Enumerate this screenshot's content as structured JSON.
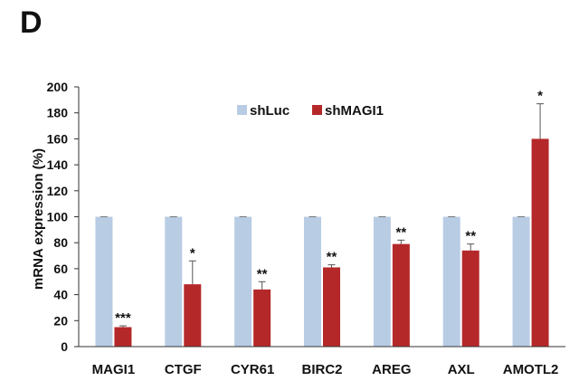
{
  "panel_label": "D",
  "chart_data": {
    "type": "bar",
    "categories": [
      "MAGI1",
      "CTGF",
      "CYR61",
      "BIRC2",
      "AREG",
      "AXL",
      "AMOTL2"
    ],
    "series": [
      {
        "name": "shLuc",
        "values": [
          100,
          100,
          100,
          100,
          100,
          100,
          100
        ],
        "error": [
          0,
          0,
          0,
          0,
          0,
          0,
          0
        ],
        "color": "#b8cce4"
      },
      {
        "name": "shMAGI1",
        "values": [
          15,
          48,
          44,
          61,
          79,
          74,
          160
        ],
        "error": [
          1,
          18,
          6,
          2,
          3,
          5,
          27
        ],
        "color": "#b5282a"
      }
    ],
    "significance": [
      "***",
      "*",
      "**",
      "**",
      "**",
      "**",
      "*"
    ],
    "title": "",
    "xlabel": "",
    "ylabel": "mRNA expression (%)",
    "ylim": [
      0,
      200
    ],
    "yticks": [
      0,
      20,
      40,
      60,
      80,
      100,
      120,
      140,
      160,
      180,
      200
    ],
    "grid": false,
    "legend_position": "top-center"
  }
}
